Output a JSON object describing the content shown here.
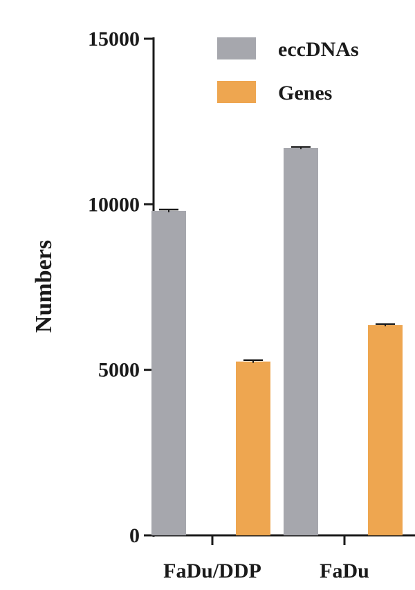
{
  "chart_data": {
    "type": "bar",
    "categories": [
      "FaDu/DDP",
      "FaDu"
    ],
    "series": [
      {
        "name": "eccDNAs",
        "values": [
          9800,
          11700
        ],
        "errors": [
          40,
          30
        ],
        "color": "#a6a7ad"
      },
      {
        "name": "Genes",
        "values": [
          5250,
          6350
        ],
        "errors": [
          40,
          30
        ],
        "color": "#eea650"
      }
    ],
    "title": "",
    "xlabel": "",
    "ylabel": "Numbers",
    "ylim": [
      0,
      15000
    ],
    "yticks": [
      0,
      5000,
      10000,
      15000
    ],
    "ytick_labels": [
      "0",
      "5000",
      "10000",
      "15000"
    ],
    "grid": false,
    "legend": "top-right"
  }
}
